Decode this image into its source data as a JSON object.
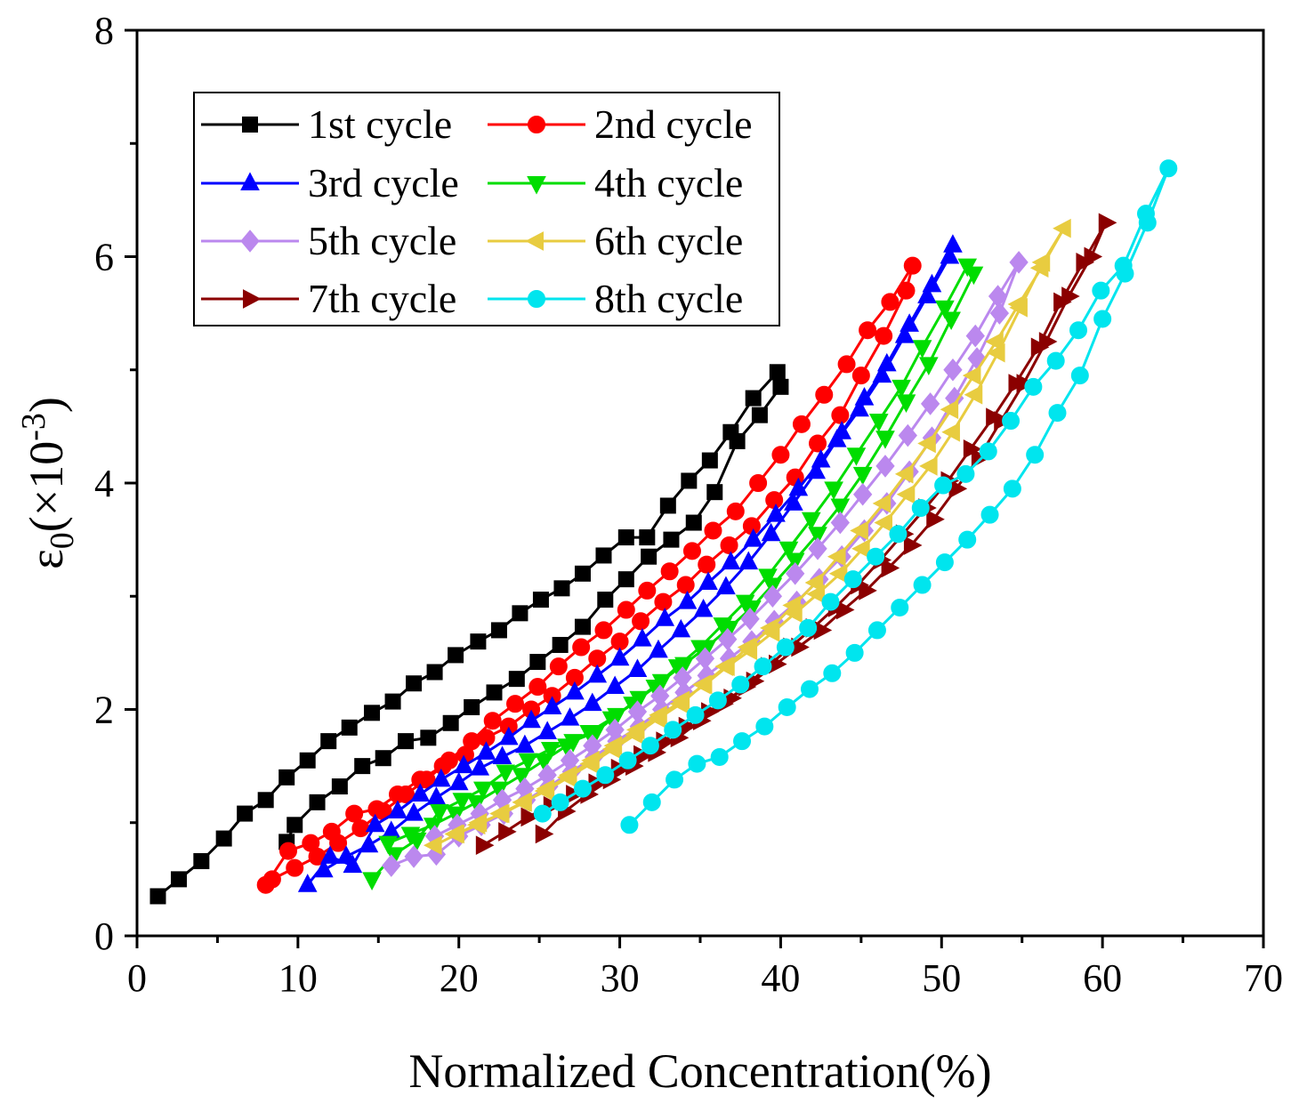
{
  "chart_data": {
    "type": "line",
    "title": "",
    "xlabel": "Normalized Concentration(%)",
    "ylabel": {
      "base": "ε",
      "sub": "0",
      "open": "(×10",
      "sup": "-3",
      "close": ")"
    },
    "xlim": [
      0,
      70
    ],
    "ylim": [
      0,
      8
    ],
    "xticks": [
      0,
      10,
      20,
      30,
      40,
      50,
      60,
      70
    ],
    "yticks": [
      0,
      2,
      4,
      6,
      8
    ],
    "legend_position": "top-left",
    "series": [
      {
        "name": "1st cycle",
        "color": "#000000",
        "marker": "square",
        "x": [
          1.3,
          2.6,
          4,
          5.4,
          6.7,
          8,
          9.3,
          10.6,
          11.9,
          13.2,
          14.6,
          15.9,
          17.2,
          18.5,
          19.8,
          21.2,
          22.5,
          23.8,
          25.1,
          26.4,
          27.7,
          29,
          30.4,
          31.7,
          33,
          34.3,
          35.6,
          36.9,
          38.3,
          39.8,
          40.0,
          38.7,
          37.3,
          35.9,
          34.6,
          33.2,
          31.8,
          30.4,
          29.1,
          27.7,
          26.3,
          24.9,
          23.6,
          22.2,
          20.8,
          19.5,
          18.1,
          16.7,
          15.3,
          14,
          12.6,
          11.2,
          9.8,
          9.3
        ],
        "y": [
          0.35,
          0.5,
          0.66,
          0.86,
          1.08,
          1.2,
          1.4,
          1.55,
          1.72,
          1.84,
          1.97,
          2.07,
          2.23,
          2.33,
          2.48,
          2.6,
          2.7,
          2.85,
          2.97,
          3.07,
          3.2,
          3.36,
          3.52,
          3.52,
          3.8,
          4.02,
          4.2,
          4.45,
          4.75,
          4.98,
          4.85,
          4.6,
          4.37,
          3.92,
          3.65,
          3.5,
          3.35,
          3.15,
          2.97,
          2.73,
          2.57,
          2.42,
          2.27,
          2.15,
          2.02,
          1.88,
          1.75,
          1.72,
          1.57,
          1.5,
          1.32,
          1.18,
          0.98,
          0.83
        ]
      },
      {
        "name": "2nd cycle",
        "color": "#ff0000",
        "marker": "circle",
        "x": [
          8,
          9.4,
          10.8,
          12.1,
          13.5,
          14.9,
          16.2,
          17.6,
          19,
          20.4,
          21.7,
          23.1,
          24.5,
          25.8,
          27.2,
          28.6,
          30,
          31.3,
          32.7,
          34.1,
          35.4,
          36.8,
          38.2,
          39.6,
          40.9,
          42.3,
          43.7,
          45,
          46.4,
          47.8,
          48.2,
          46.8,
          45.4,
          44.1,
          42.7,
          41.3,
          40,
          38.6,
          37.2,
          35.8,
          34.5,
          33.1,
          31.7,
          30.4,
          29,
          27.6,
          26.2,
          24.9,
          23.5,
          22.1,
          20.8,
          19.4,
          18,
          16.7,
          15.3,
          13.9,
          12.5,
          11.2,
          9.8,
          8.4
        ],
        "y": [
          0.45,
          0.75,
          0.82,
          0.92,
          1.08,
          1.12,
          1.25,
          1.38,
          1.5,
          1.6,
          1.75,
          1.85,
          2.0,
          2.12,
          2.28,
          2.45,
          2.6,
          2.78,
          2.95,
          3.1,
          3.28,
          3.45,
          3.62,
          3.85,
          4.05,
          4.35,
          4.6,
          4.95,
          5.3,
          5.7,
          5.92,
          5.6,
          5.35,
          5.05,
          4.78,
          4.52,
          4.25,
          4.0,
          3.75,
          3.58,
          3.4,
          3.22,
          3.05,
          2.88,
          2.7,
          2.55,
          2.38,
          2.2,
          2.05,
          1.9,
          1.72,
          1.55,
          1.38,
          1.25,
          1.1,
          0.95,
          0.82,
          0.7,
          0.6,
          0.5
        ]
      },
      {
        "name": "3rd cycle",
        "color": "#0000ff",
        "marker": "triangle-up",
        "x": [
          10.6,
          12,
          13.4,
          14.8,
          16.2,
          17.6,
          18.9,
          20.3,
          21.7,
          23.1,
          24.5,
          25.8,
          27.2,
          28.6,
          30,
          31.4,
          32.8,
          34.2,
          35.5,
          36.9,
          38.3,
          39.7,
          41.1,
          42.5,
          43.8,
          45.2,
          46.6,
          48,
          49.4,
          50.7,
          50.5,
          49.1,
          47.7,
          46.3,
          44.9,
          43.5,
          42.2,
          40.8,
          39.4,
          38,
          36.6,
          35.2,
          33.8,
          32.4,
          31.1,
          29.7,
          28.3,
          26.9,
          25.5,
          24.1,
          22.7,
          21.3,
          20,
          18.6,
          17.2,
          15.8,
          14.4,
          13,
          11.6
        ],
        "y": [
          0.45,
          0.7,
          0.62,
          0.98,
          1.1,
          1.25,
          1.38,
          1.5,
          1.62,
          1.75,
          1.9,
          2.02,
          2.15,
          2.3,
          2.45,
          2.62,
          2.8,
          2.95,
          3.12,
          3.3,
          3.5,
          3.72,
          3.95,
          4.2,
          4.45,
          4.75,
          5.05,
          5.4,
          5.75,
          6.1,
          6.0,
          5.65,
          5.3,
          4.95,
          4.65,
          4.38,
          4.1,
          3.82,
          3.55,
          3.3,
          3.08,
          2.88,
          2.7,
          2.52,
          2.35,
          2.2,
          2.05,
          1.92,
          1.8,
          1.68,
          1.58,
          1.48,
          1.35,
          1.22,
          1.08,
          0.92,
          0.8,
          0.7,
          0.58
        ]
      },
      {
        "name": "4th cycle",
        "color": "#00dd00",
        "marker": "triangle-down",
        "x": [
          14.6,
          16,
          17.4,
          18.8,
          20.2,
          21.5,
          22.9,
          24.3,
          25.7,
          27.1,
          28.5,
          29.8,
          31.2,
          32.6,
          34,
          35.4,
          36.8,
          38.2,
          39.5,
          40.9,
          42.3,
          43.7,
          45.1,
          46.5,
          47.8,
          49.2,
          50.6,
          52,
          51.6,
          50.2,
          48.8,
          47.5,
          46.1,
          44.7,
          43.3,
          41.9,
          40.5,
          39.2,
          37.8,
          36.4,
          35,
          33.6,
          32.2,
          30.8,
          29.5,
          28.1,
          26.7,
          25.3,
          23.9,
          22.5,
          21.1,
          19.8,
          18.4,
          17,
          15.6
        ],
        "y": [
          0.5,
          0.72,
          0.85,
          1.1,
          1.2,
          1.3,
          1.45,
          1.55,
          1.65,
          1.72,
          1.8,
          1.95,
          2.1,
          2.25,
          2.4,
          2.55,
          2.72,
          2.9,
          3.1,
          3.32,
          3.55,
          3.8,
          4.08,
          4.4,
          4.72,
          5.05,
          5.45,
          5.85,
          5.92,
          5.55,
          5.2,
          4.85,
          4.55,
          4.25,
          3.95,
          3.68,
          3.42,
          3.18,
          2.95,
          2.75,
          2.55,
          2.38,
          2.2,
          2.05,
          1.92,
          1.8,
          1.68,
          1.55,
          1.42,
          1.3,
          1.18,
          1.08,
          0.98,
          0.9,
          0.82
        ]
      },
      {
        "name": "5th cycle",
        "color": "#bb88ee",
        "marker": "diamond",
        "x": [
          15.8,
          17.2,
          18.6,
          20,
          21.4,
          22.8,
          24.2,
          25.6,
          27,
          28.4,
          29.8,
          31.2,
          32.6,
          34,
          35.4,
          36.8,
          38.2,
          39.6,
          41,
          42.4,
          43.8,
          45.2,
          46.6,
          48,
          49.4,
          50.8,
          52.2,
          53.6,
          54.8,
          53.5,
          52.1,
          50.7,
          49.3,
          47.9,
          46.5,
          45.1,
          43.7,
          42.3,
          40.9,
          39.5,
          38.1,
          36.7,
          35.3,
          33.9,
          32.5,
          31.1,
          29.7,
          28.3,
          26.9,
          25.5,
          24.1,
          22.7,
          21.3,
          19.9,
          18.5
        ],
        "y": [
          0.62,
          0.7,
          0.72,
          0.88,
          0.98,
          1.08,
          1.2,
          1.32,
          1.45,
          1.58,
          1.72,
          1.85,
          2.0,
          2.15,
          2.3,
          2.45,
          2.6,
          2.78,
          2.95,
          3.15,
          3.35,
          3.58,
          3.82,
          4.1,
          4.4,
          4.75,
          5.1,
          5.5,
          5.95,
          5.65,
          5.3,
          5.0,
          4.7,
          4.42,
          4.15,
          3.9,
          3.65,
          3.42,
          3.2,
          3.0,
          2.8,
          2.62,
          2.45,
          2.28,
          2.12,
          1.98,
          1.82,
          1.68,
          1.55,
          1.42,
          1.3,
          1.2,
          1.08,
          0.98,
          0.88
        ]
      },
      {
        "name": "6th cycle",
        "color": "#e8cc40",
        "marker": "triangle-left",
        "x": [
          18.5,
          19.9,
          21.3,
          22.7,
          24.1,
          25.5,
          26.9,
          28.3,
          29.7,
          31.1,
          32.5,
          33.9,
          35.3,
          36.7,
          38.1,
          39.5,
          40.9,
          42.3,
          43.7,
          45.1,
          46.5,
          47.9,
          49.3,
          50.7,
          52.1,
          53.5,
          54.9,
          56.3,
          57.6,
          56.2,
          54.8,
          53.4,
          52,
          50.6,
          49.2,
          47.8,
          46.4,
          45,
          43.6,
          42.2,
          40.8,
          39.4,
          38,
          36.6,
          35.2,
          33.8,
          32.4,
          31,
          29.6,
          28.2,
          26.8,
          25.4,
          24,
          22.6,
          21.2,
          19.8
        ],
        "y": [
          0.8,
          0.9,
          1.0,
          1.08,
          1.18,
          1.3,
          1.42,
          1.55,
          1.68,
          1.82,
          1.95,
          2.08,
          2.22,
          2.38,
          2.52,
          2.68,
          2.85,
          3.02,
          3.2,
          3.42,
          3.65,
          3.9,
          4.15,
          4.45,
          4.78,
          5.15,
          5.55,
          5.95,
          6.25,
          5.9,
          5.58,
          5.25,
          4.95,
          4.65,
          4.35,
          4.08,
          3.82,
          3.58,
          3.35,
          3.12,
          2.92,
          2.72,
          2.55,
          2.38,
          2.22,
          2.05,
          1.92,
          1.78,
          1.65,
          1.52,
          1.4,
          1.28,
          1.18,
          1.08,
          0.98,
          0.9
        ]
      },
      {
        "name": "7th cycle",
        "color": "#8b0000",
        "marker": "triangle-right",
        "x": [
          21.5,
          22.9,
          24.3,
          25.7,
          27.1,
          28.5,
          29.9,
          31.3,
          32.7,
          34.1,
          35.5,
          36.9,
          38.3,
          39.7,
          41.1,
          42.5,
          43.9,
          45.3,
          46.7,
          48.1,
          49.5,
          50.9,
          52.3,
          53.7,
          55.1,
          56.5,
          57.9,
          59.3,
          60.2,
          58.8,
          57.4,
          56,
          54.6,
          53.2,
          51.8,
          50.4,
          49,
          47.6,
          46.2,
          44.8,
          43.4,
          42,
          40.6,
          39.2,
          37.8,
          36.4,
          35,
          33.6,
          32.2,
          30.8,
          29.4,
          28,
          26.6,
          25.2
        ],
        "y": [
          0.8,
          0.92,
          1.05,
          1.15,
          1.25,
          1.35,
          1.48,
          1.6,
          1.72,
          1.85,
          1.98,
          2.1,
          2.25,
          2.4,
          2.55,
          2.7,
          2.88,
          3.05,
          3.25,
          3.45,
          3.68,
          3.95,
          4.22,
          4.55,
          4.88,
          5.25,
          5.65,
          6.0,
          6.3,
          5.95,
          5.6,
          5.2,
          4.88,
          4.58,
          4.3,
          4.02,
          3.78,
          3.55,
          3.32,
          3.1,
          2.9,
          2.72,
          2.55,
          2.38,
          2.2,
          2.05,
          1.9,
          1.75,
          1.62,
          1.5,
          1.38,
          1.25,
          1.1,
          0.9
        ]
      },
      {
        "name": "8th cycle",
        "color": "#00e5ee",
        "marker": "circle",
        "x": [
          30.6,
          32,
          33.4,
          34.8,
          36.2,
          37.6,
          39,
          40.4,
          41.8,
          43.2,
          44.6,
          46,
          47.4,
          48.8,
          50.2,
          51.6,
          53,
          54.4,
          55.8,
          57.2,
          58.6,
          60,
          61.4,
          62.8,
          64.1,
          62.7,
          61.3,
          59.9,
          58.5,
          57.1,
          55.7,
          54.3,
          52.9,
          51.5,
          50.1,
          48.7,
          47.3,
          45.9,
          44.5,
          43.1,
          41.7,
          40.3,
          38.9,
          37.5,
          36.1,
          34.7,
          33.3,
          31.9,
          30.5,
          29.1,
          27.7,
          26.3,
          25.2
        ],
        "y": [
          0.98,
          1.18,
          1.38,
          1.52,
          1.58,
          1.72,
          1.85,
          2.02,
          2.18,
          2.32,
          2.5,
          2.7,
          2.9,
          3.1,
          3.3,
          3.5,
          3.72,
          3.95,
          4.25,
          4.62,
          4.95,
          5.45,
          5.85,
          6.3,
          6.78,
          6.38,
          5.92,
          5.7,
          5.35,
          5.08,
          4.85,
          4.55,
          4.28,
          4.08,
          3.98,
          3.78,
          3.55,
          3.35,
          3.15,
          2.95,
          2.72,
          2.55,
          2.38,
          2.22,
          2.08,
          1.95,
          1.82,
          1.68,
          1.55,
          1.42,
          1.3,
          1.18,
          1.08
        ]
      }
    ]
  }
}
